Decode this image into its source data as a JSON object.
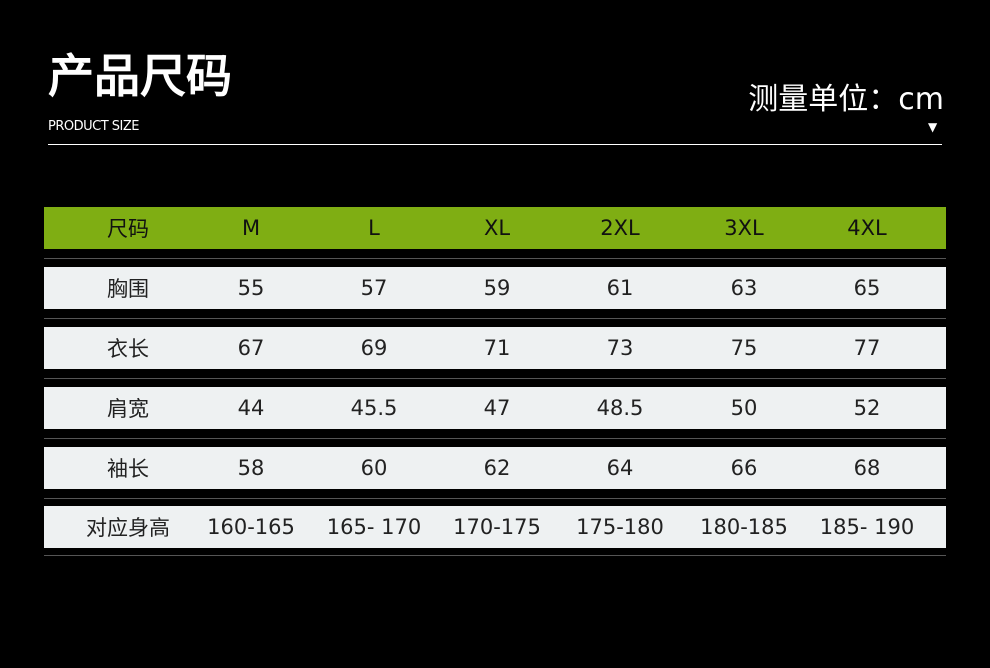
{
  "title": "产品尺码",
  "subtitle": "PRODUCT SIZE",
  "unit": "测量单位：cm",
  "arrow": "▼",
  "colors": {
    "header": "#7fae13",
    "row": "#eef1f2",
    "background": "#000000"
  },
  "table": {
    "header": [
      "尺码",
      "M",
      "L",
      "XL",
      "2XL",
      "3XL",
      "4XL"
    ],
    "rows": [
      [
        "胸围",
        "55",
        "57",
        "59",
        "61",
        "63",
        "65"
      ],
      [
        "衣长",
        "67",
        "69",
        "71",
        "73",
        "75",
        "77"
      ],
      [
        "肩宽",
        "44",
        "45.5",
        "47",
        "48.5",
        "50",
        "52"
      ],
      [
        "袖长",
        "58",
        "60",
        "62",
        "64",
        "66",
        "68"
      ],
      [
        "对应身高",
        "160-165",
        "165- 170",
        "170-175",
        "175-180",
        "180-185",
        "185- 190"
      ]
    ]
  }
}
